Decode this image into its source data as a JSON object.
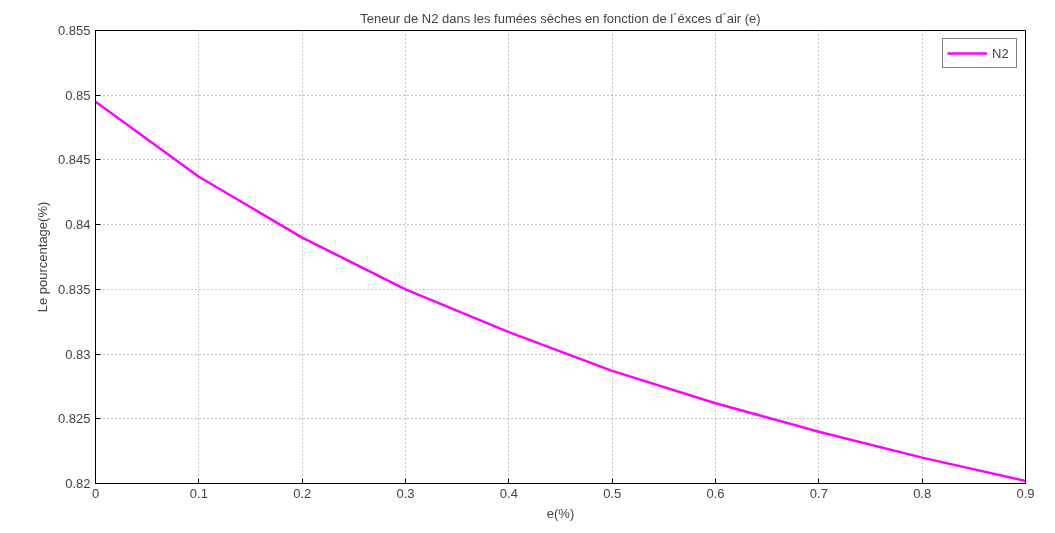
{
  "chart_data": {
    "type": "line",
    "title": "Teneur de N2 dans les fumées sèches en fonction de l´éxces d´air (e)",
    "xlabel": "e(%)",
    "ylabel": "Le pourcentage(%)",
    "x": [
      0,
      0.1,
      0.2,
      0.3,
      0.4,
      0.5,
      0.6,
      0.7,
      0.8,
      0.9
    ],
    "series": [
      {
        "name": "N2",
        "color": "#ff00ff",
        "values": [
          0.8495,
          0.8437,
          0.839,
          0.835,
          0.8317,
          0.8287,
          0.8262,
          0.824,
          0.822,
          0.8202
        ]
      }
    ],
    "xlim": [
      0,
      0.9
    ],
    "xticks": [
      0,
      0.1,
      0.2,
      0.3,
      0.4,
      0.5,
      0.6,
      0.7,
      0.8,
      0.9
    ],
    "ylim": [
      0.82,
      0.855
    ],
    "yticks": [
      0.82,
      0.825,
      0.83,
      0.835,
      0.84,
      0.845,
      0.85,
      0.855
    ],
    "grid": true,
    "legend": "top right",
    "line_style": "solid",
    "marker": "none"
  }
}
